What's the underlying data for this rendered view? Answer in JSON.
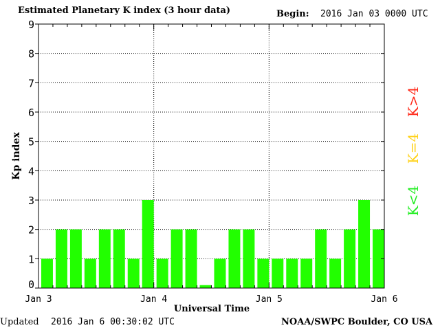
{
  "header": {
    "title": "Estimated Planetary K index (3 hour data)",
    "begin_label": "Begin:",
    "begin_value": "2016 Jan 03 0000 UTC"
  },
  "footer": {
    "updated_label": "Updated",
    "updated_value": "2016 Jan  6 00:30:02 UTC",
    "source": "NOAA/SWPC Boulder, CO USA"
  },
  "legend": [
    {
      "label": "K>4",
      "color": "#ff2a1a"
    },
    {
      "label": "K=4",
      "color": "#ffd21a"
    },
    {
      "label": "K<4",
      "color": "#22ee22"
    }
  ],
  "chart_data": {
    "type": "bar",
    "title": "Estimated Planetary K index (3 hour data)",
    "xlabel": "Universal Time",
    "ylabel": "Kp index",
    "ylim": [
      0,
      9
    ],
    "yticks": [
      "0",
      "1",
      "2",
      "3",
      "4",
      "5",
      "6",
      "7",
      "8",
      "9"
    ],
    "xticks": [
      "Jan 3",
      "Jan 4",
      "Jan 5",
      "Jan 6"
    ],
    "grid": true,
    "categories": [
      "Jan 3 00",
      "Jan 3 03",
      "Jan 3 06",
      "Jan 3 09",
      "Jan 3 12",
      "Jan 3 15",
      "Jan 3 18",
      "Jan 3 21",
      "Jan 4 00",
      "Jan 4 03",
      "Jan 4 06",
      "Jan 4 09",
      "Jan 4 12",
      "Jan 4 15",
      "Jan 4 18",
      "Jan 4 21",
      "Jan 5 00",
      "Jan 5 03",
      "Jan 5 06",
      "Jan 5 09",
      "Jan 5 12",
      "Jan 5 15",
      "Jan 5 18",
      "Jan 5 21"
    ],
    "values": [
      1,
      2,
      2,
      1,
      2,
      2,
      1,
      3,
      1,
      2,
      2,
      0.1,
      1,
      2,
      2,
      1,
      1,
      1,
      1,
      2,
      1,
      2,
      3,
      2
    ],
    "bar_color": "#22ff00"
  }
}
